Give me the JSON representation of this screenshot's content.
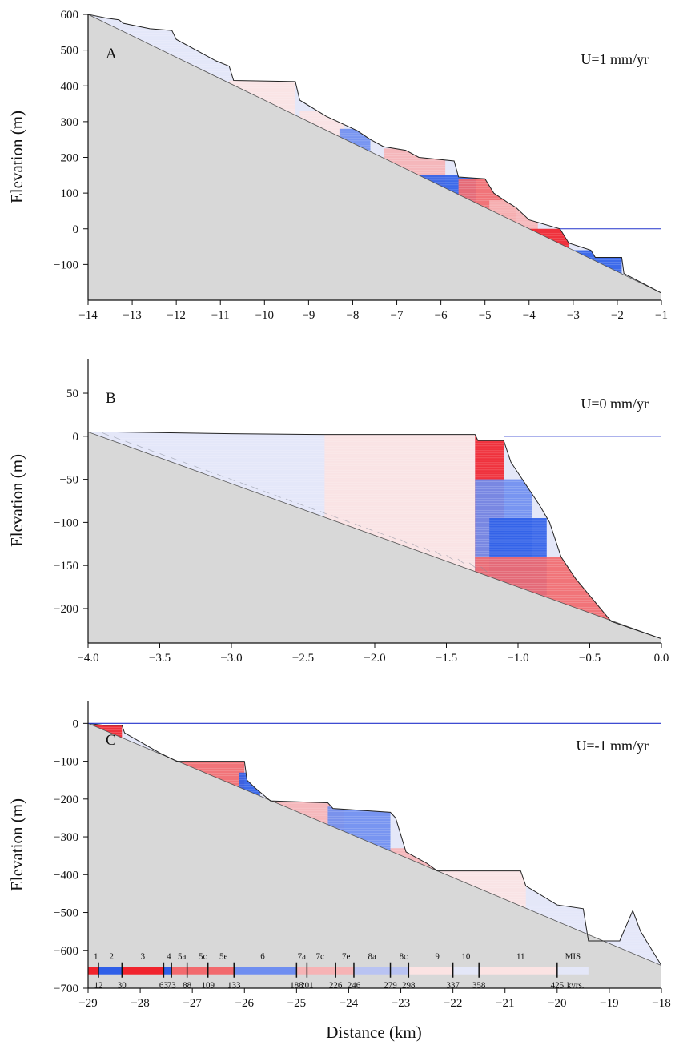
{
  "figure": {
    "ylabel": "Elevation (m)",
    "xlabel": "Distance (km)"
  },
  "colors": {
    "background": "#d9d9d9",
    "bedrock": "#d8d8d8",
    "sea_level": "#2233cc",
    "outline": "#222222",
    "deep_red": "#f0232d",
    "red": "#f26a6e",
    "light_red": "#f6b3b5",
    "pale_red": "#fbe3e3",
    "deep_blue": "#2f5fe8",
    "blue": "#6f8ef0",
    "light_blue": "#b9c3f2",
    "pale_blue": "#e4e7f8",
    "grey_stripes": "#8a8f9c"
  },
  "chart_data": [
    {
      "type": "area",
      "panel": "A",
      "rate_label": "U=1 mm/yr",
      "xlim": [
        -14,
        -1
      ],
      "ylim": [
        -200,
        600
      ],
      "x_ticks": [
        -14,
        -13,
        -12,
        -11,
        -10,
        -9,
        -8,
        -7,
        -6,
        -5,
        -4,
        -3,
        -2,
        -1
      ],
      "x_tick_labels": [
        "−14",
        "−13",
        "−12",
        "−11",
        "−10",
        "−9",
        "−8",
        "−7",
        "−6",
        "−5",
        "−4",
        "−3",
        "−2",
        "−1"
      ],
      "y_ticks": [
        -100,
        0,
        100,
        200,
        300,
        400,
        500,
        600
      ],
      "y_tick_labels": [
        "−100",
        "0",
        "100",
        "200",
        "300",
        "400",
        "500",
        "600"
      ],
      "sea_level": {
        "x": [
          -3.3,
          -1
        ],
        "y": 0
      },
      "bedrock_line": [
        [
          -14,
          600
        ],
        [
          -1,
          -180
        ]
      ],
      "profile": [
        [
          -14,
          600
        ],
        [
          -13.6,
          590
        ],
        [
          -13.3,
          585
        ],
        [
          -13.2,
          575
        ],
        [
          -12.6,
          560
        ],
        [
          -12.1,
          555
        ],
        [
          -12.0,
          530
        ],
        [
          -11.1,
          470
        ],
        [
          -10.8,
          455
        ],
        [
          -10.7,
          415
        ],
        [
          -9.3,
          412
        ],
        [
          -9.2,
          360
        ],
        [
          -8.8,
          330
        ],
        [
          -8.6,
          315
        ],
        [
          -7.9,
          275
        ],
        [
          -7.6,
          250
        ],
        [
          -7.3,
          230
        ],
        [
          -6.8,
          220
        ],
        [
          -6.5,
          200
        ],
        [
          -5.7,
          190
        ],
        [
          -5.6,
          145
        ],
        [
          -5.0,
          140
        ],
        [
          -4.8,
          100
        ],
        [
          -4.5,
          75
        ],
        [
          -4.3,
          60
        ],
        [
          -4.0,
          25
        ],
        [
          -3.3,
          0
        ],
        [
          -3.1,
          -40
        ],
        [
          -2.6,
          -60
        ],
        [
          -2.5,
          -80
        ],
        [
          -1.9,
          -80
        ],
        [
          -1.85,
          -125
        ],
        [
          -1,
          -180
        ]
      ],
      "color_bands": [
        {
          "x0": -13.6,
          "x1": -9.3,
          "y_top": 560,
          "color": "pale_blue"
        },
        {
          "x0": -10.8,
          "x1": -9.3,
          "y_top": 415,
          "color": "pale_red"
        },
        {
          "x0": -9.2,
          "x1": -8.2,
          "y_top": 330,
          "color": "pale_red"
        },
        {
          "x0": -8.3,
          "x1": -7.6,
          "y_top": 280,
          "color": "blue"
        },
        {
          "x0": -7.3,
          "x1": -5.9,
          "y_top": 225,
          "color": "light_red"
        },
        {
          "x0": -7.2,
          "x1": -5.2,
          "y_top": 150,
          "color": "deep_blue"
        },
        {
          "x0": -5.6,
          "x1": -4.3,
          "y_top": 140,
          "color": "red"
        },
        {
          "x0": -4.9,
          "x1": -3.8,
          "y_top": 80,
          "color": "light_red"
        },
        {
          "x0": -4.2,
          "x1": -3.1,
          "y_top": 0,
          "color": "deep_red"
        },
        {
          "x0": -3.4,
          "x1": -1.9,
          "y_top": -60,
          "color": "deep_blue"
        }
      ]
    },
    {
      "type": "area",
      "panel": "B",
      "rate_label": "U=0 mm/yr",
      "xlim": [
        -4.0,
        0.0
      ],
      "ylim": [
        -240,
        90
      ],
      "x_ticks": [
        -4.0,
        -3.5,
        -3.0,
        -2.5,
        -2.0,
        -1.5,
        -1.0,
        -0.5,
        0.0
      ],
      "x_tick_labels": [
        "−4.0",
        "−3.5",
        "−3.0",
        "−2.5",
        "−2.0",
        "−1.5",
        "−1.0",
        "−0.5",
        "0.0"
      ],
      "y_ticks": [
        -200,
        -150,
        -100,
        -50,
        0,
        50
      ],
      "y_tick_labels": [
        "−200",
        "−150",
        "−100",
        "−50",
        "0",
        "50"
      ],
      "sea_level": {
        "x": [
          -1.1,
          0.0
        ],
        "y": 0
      },
      "bedrock_line": [
        [
          -4.0,
          5
        ],
        [
          0.0,
          -235
        ]
      ],
      "profile": [
        [
          -4.0,
          5
        ],
        [
          -3.8,
          5
        ],
        [
          -3.0,
          3
        ],
        [
          -2.35,
          2
        ],
        [
          -1.3,
          2
        ],
        [
          -1.28,
          -5
        ],
        [
          -1.1,
          -5
        ],
        [
          -1.05,
          -30
        ],
        [
          -0.95,
          -55
        ],
        [
          -0.85,
          -80
        ],
        [
          -0.78,
          -100
        ],
        [
          -0.7,
          -140
        ],
        [
          -0.6,
          -165
        ],
        [
          -0.35,
          -215
        ],
        [
          0.0,
          -235
        ]
      ],
      "color_bands": [
        {
          "x0": -3.8,
          "x1": -1.3,
          "y_top": 3,
          "color": "pale_blue"
        },
        {
          "x0": -2.35,
          "x1": -1.3,
          "y_top": 2,
          "color": "pale_red"
        },
        {
          "x0": -1.3,
          "x1": -1.1,
          "y_top": 0,
          "color": "deep_red"
        },
        {
          "x0": -1.3,
          "x1": -0.9,
          "y_top": -50,
          "color": "blue"
        },
        {
          "x0": -1.2,
          "x1": -0.8,
          "y_top": -95,
          "color": "deep_blue"
        },
        {
          "x0": -1.3,
          "x1": -0.35,
          "y_top": -140,
          "color": "red"
        }
      ]
    },
    {
      "type": "area",
      "panel": "C",
      "rate_label": "U=-1 mm/yr",
      "xlim": [
        -29,
        -18
      ],
      "ylim": [
        -700,
        60
      ],
      "x_ticks": [
        -29,
        -28,
        -27,
        -26,
        -25,
        -24,
        -23,
        -22,
        -21,
        -20,
        -19,
        -18
      ],
      "x_tick_labels": [
        "−29",
        "−28",
        "−27",
        "−26",
        "−25",
        "−24",
        "−23",
        "−22",
        "−21",
        "−20",
        "−19",
        "−18"
      ],
      "y_ticks": [
        -700,
        -600,
        -500,
        -400,
        -300,
        -200,
        -100,
        0
      ],
      "y_tick_labels": [
        "−700",
        "−600",
        "−500",
        "−400",
        "−300",
        "−200",
        "−100",
        "0"
      ],
      "sea_level": {
        "x": [
          -29,
          -18
        ],
        "y": 0
      },
      "bedrock_line": [
        [
          -29,
          0
        ],
        [
          -18,
          -640
        ]
      ],
      "profile": [
        [
          -29,
          0
        ],
        [
          -28.7,
          -5
        ],
        [
          -28.35,
          -5
        ],
        [
          -28.3,
          -25
        ],
        [
          -27.6,
          -80
        ],
        [
          -27.3,
          -100
        ],
        [
          -26.0,
          -100
        ],
        [
          -25.95,
          -150
        ],
        [
          -25.8,
          -170
        ],
        [
          -25.5,
          -205
        ],
        [
          -24.4,
          -210
        ],
        [
          -24.3,
          -225
        ],
        [
          -23.2,
          -235
        ],
        [
          -23.1,
          -250
        ],
        [
          -22.9,
          -340
        ],
        [
          -22.5,
          -370
        ],
        [
          -22.3,
          -390
        ],
        [
          -20.7,
          -390
        ],
        [
          -20.6,
          -430
        ],
        [
          -20.0,
          -480
        ],
        [
          -19.5,
          -490
        ],
        [
          -19.4,
          -575
        ],
        [
          -18.8,
          -575
        ],
        [
          -18.55,
          -495
        ],
        [
          -18.4,
          -550
        ],
        [
          -18,
          -640
        ]
      ],
      "color_bands": [
        {
          "x0": -28.9,
          "x1": -28.35,
          "y_top": -5,
          "color": "deep_red"
        },
        {
          "x0": -27.9,
          "x1": -26.0,
          "y_top": -100,
          "color": "red"
        },
        {
          "x0": -26.1,
          "x1": -25.7,
          "y_top": -130,
          "color": "deep_blue"
        },
        {
          "x0": -25.6,
          "x1": -24.1,
          "y_top": -205,
          "color": "light_red"
        },
        {
          "x0": -24.4,
          "x1": -23.2,
          "y_top": -220,
          "color": "blue"
        },
        {
          "x0": -23.2,
          "x1": -22.3,
          "y_top": -330,
          "color": "light_red"
        },
        {
          "x0": -22.3,
          "x1": -20.6,
          "y_top": -390,
          "color": "pale_red"
        },
        {
          "x0": -20.6,
          "x1": -18.1,
          "y_top": -480,
          "color": "pale_blue"
        }
      ],
      "mis_bar": {
        "label": "MIS",
        "units_label": "kyrs.",
        "y": -655,
        "stages": [
          {
            "label": "1",
            "x0": -29.0,
            "x1": -28.8,
            "color": "deep_red"
          },
          {
            "label": "2",
            "x0": -28.8,
            "x1": -28.35,
            "color": "deep_blue"
          },
          {
            "label": "3",
            "x0": -28.35,
            "x1": -27.55,
            "color": "deep_red"
          },
          {
            "label": "4",
            "x0": -27.55,
            "x1": -27.4,
            "color": "deep_blue"
          },
          {
            "label": "5a",
            "x0": -27.4,
            "x1": -27.1,
            "color": "red"
          },
          {
            "label": "5c",
            "x0": -27.1,
            "x1": -26.7,
            "color": "red"
          },
          {
            "label": "5e",
            "x0": -26.7,
            "x1": -26.2,
            "color": "red"
          },
          {
            "label": "6",
            "x0": -26.2,
            "x1": -25.0,
            "color": "blue"
          },
          {
            "label": "7a",
            "x0": -25.0,
            "x1": -24.8,
            "color": "light_red"
          },
          {
            "label": "7c",
            "x0": -24.8,
            "x1": -24.25,
            "color": "light_red"
          },
          {
            "label": "7e",
            "x0": -24.25,
            "x1": -23.9,
            "color": "light_red"
          },
          {
            "label": "8a",
            "x0": -23.9,
            "x1": -23.2,
            "color": "light_blue"
          },
          {
            "label": "8c",
            "x0": -23.2,
            "x1": -22.85,
            "color": "light_blue"
          },
          {
            "label": "9",
            "x0": -22.85,
            "x1": -22.0,
            "color": "pale_red"
          },
          {
            "label": "10",
            "x0": -22.0,
            "x1": -21.5,
            "color": "pale_blue"
          },
          {
            "label": "11",
            "x0": -21.5,
            "x1": -20.0,
            "color": "pale_red"
          },
          {
            "label": "",
            "x0": -20.0,
            "x1": -19.4,
            "color": "pale_blue"
          }
        ],
        "stage_labels": [
          {
            "label": "1",
            "x": -28.85
          },
          {
            "label": "2",
            "x": -28.55
          },
          {
            "label": "3",
            "x": -27.95
          },
          {
            "label": "4",
            "x": -27.45
          },
          {
            "label": "5a",
            "x": -27.2
          },
          {
            "label": "5c",
            "x": -26.8
          },
          {
            "label": "5e",
            "x": -26.4
          },
          {
            "label": "6",
            "x": -25.65
          },
          {
            "label": "7a",
            "x": -24.9
          },
          {
            "label": "7c",
            "x": -24.55
          },
          {
            "label": "7e",
            "x": -24.05
          },
          {
            "label": "8a",
            "x": -23.55
          },
          {
            "label": "8c",
            "x": -22.95
          },
          {
            "label": "9",
            "x": -22.3
          },
          {
            "label": "10",
            "x": -21.75
          },
          {
            "label": "11",
            "x": -20.7
          },
          {
            "label": "MIS",
            "x": -19.7
          }
        ],
        "age_ticks": [
          {
            "age": "12",
            "x": -28.8
          },
          {
            "age": "30",
            "x": -28.35
          },
          {
            "age": "63",
            "x": -27.55
          },
          {
            "age": "73",
            "x": -27.4
          },
          {
            "age": "88",
            "x": -27.1
          },
          {
            "age": "109",
            "x": -26.7
          },
          {
            "age": "133",
            "x": -26.2
          },
          {
            "age": "188",
            "x": -25.0
          },
          {
            "age": "201",
            "x": -24.8
          },
          {
            "age": "226",
            "x": -24.25
          },
          {
            "age": "246",
            "x": -23.9
          },
          {
            "age": "279",
            "x": -23.2
          },
          {
            "age": "298",
            "x": -22.85
          },
          {
            "age": "337",
            "x": -22.0
          },
          {
            "age": "358",
            "x": -21.5
          },
          {
            "age": "425",
            "x": -20.0
          }
        ]
      }
    }
  ]
}
